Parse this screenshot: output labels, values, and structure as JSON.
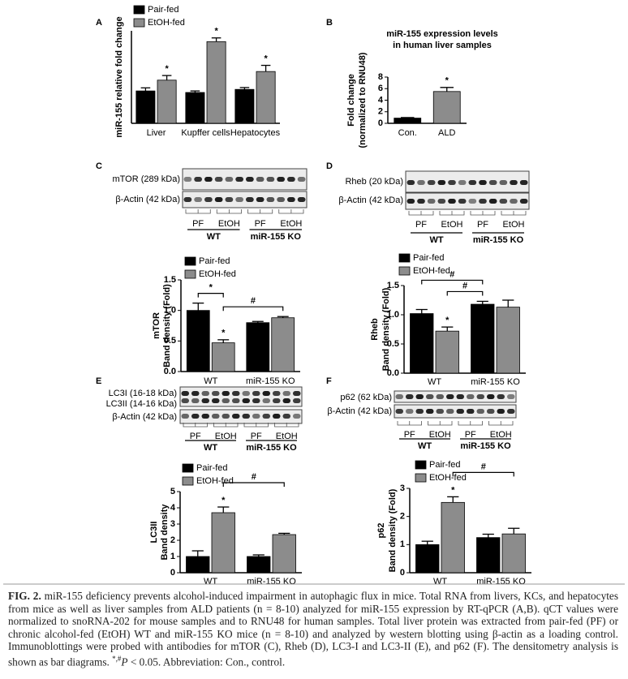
{
  "panel_labels": [
    "A",
    "B",
    "C",
    "D",
    "E",
    "F"
  ],
  "chart_data": [
    {
      "type": "bar",
      "y_label": "miR-155 relative fold change",
      "categories": [
        "Liver",
        "Kupffer cells",
        "Hepatocytes"
      ],
      "series": [
        {
          "name": "Pair-fed",
          "color": "#000000",
          "values": [
            1.05,
            1.0,
            1.1
          ],
          "errors": [
            0.1,
            0.05,
            0.06
          ]
        },
        {
          "name": "EtOH-fed",
          "color": "#8c8c8c",
          "values": [
            1.4,
            2.65,
            1.68
          ],
          "errors": [
            0.15,
            0.12,
            0.2
          ],
          "markers": [
            "*",
            "*",
            "*"
          ]
        }
      ],
      "ylim": [
        0,
        3
      ]
    },
    {
      "type": "bar",
      "title": [
        "miR-155 expression levels",
        "in human liver samples"
      ],
      "y_label": [
        "Fold change",
        "(normalized to RNU48)"
      ],
      "categories": [
        "Con.",
        "ALD"
      ],
      "values": [
        0.9,
        5.5
      ],
      "errors": [
        0.1,
        0.7
      ],
      "colors": [
        "#000000",
        "#8c8c8c"
      ],
      "markers": [
        null,
        "*"
      ],
      "ylim": [
        0,
        8
      ],
      "yticks": [
        0,
        2,
        4,
        6,
        8
      ]
    },
    {
      "type": "bar",
      "y_label": [
        "mTOR",
        "Band density (Fold)"
      ],
      "categories": [
        "WT",
        "miR-155 KO"
      ],
      "series": [
        {
          "name": "Pair-fed",
          "color": "#000000",
          "values": [
            1.0,
            0.8
          ],
          "errors": [
            0.12,
            0.02
          ]
        },
        {
          "name": "EtOH-fed",
          "color": "#8c8c8c",
          "values": [
            0.47,
            0.88
          ],
          "errors": [
            0.05,
            0.02
          ],
          "markers": [
            "*",
            null
          ]
        }
      ],
      "brackets": [
        {
          "label": "*",
          "from": [
            0,
            0
          ],
          "to": [
            1,
            0
          ]
        },
        {
          "label": "#",
          "from": [
            1,
            0
          ],
          "to": [
            1,
            1
          ]
        }
      ],
      "ylim": [
        0,
        1.5
      ],
      "yticks": [
        {
          "value": 0,
          "label": "0.0"
        },
        0.5,
        {
          "value": 1,
          "label": "1.0"
        },
        1.5
      ]
    },
    {
      "type": "bar",
      "y_label": [
        "Rheb",
        "Band density (Fold)"
      ],
      "categories": [
        "WT",
        "miR-155 KO"
      ],
      "series": [
        {
          "name": "Pair-fed",
          "color": "#000000",
          "values": [
            1.02,
            1.18
          ],
          "errors": [
            0.07,
            0.05
          ]
        },
        {
          "name": "EtOH-fed",
          "color": "#8c8c8c",
          "values": [
            0.72,
            1.13
          ],
          "errors": [
            0.07,
            0.12
          ],
          "markers": [
            "*",
            null
          ]
        }
      ],
      "brackets": [
        {
          "label": "#",
          "from": [
            1,
            0
          ],
          "to": [
            0,
            1
          ]
        },
        {
          "label": "#",
          "from": [
            0,
            0
          ],
          "to": [
            0,
            1
          ]
        }
      ],
      "ylim": [
        0,
        1.5
      ],
      "yticks": [
        {
          "value": 0,
          "label": "0.0"
        },
        0.5,
        {
          "value": 1,
          "label": "1.0"
        },
        1.5
      ]
    },
    {
      "type": "bar",
      "y_label": [
        "LC3II",
        "Band density"
      ],
      "categories": [
        "WT",
        "miR-155 KO"
      ],
      "series": [
        {
          "name": "Pair-fed",
          "color": "#000000",
          "values": [
            1.0,
            1.0
          ],
          "errors": [
            0.35,
            0.1
          ]
        },
        {
          "name": "EtOH-fed",
          "color": "#8c8c8c",
          "values": [
            3.7,
            2.35
          ],
          "errors": [
            0.35,
            0.08
          ],
          "markers": [
            "*",
            null
          ]
        }
      ],
      "brackets": [
        {
          "label": "#",
          "from": [
            1,
            0
          ],
          "to": [
            1,
            1
          ]
        }
      ],
      "ylim": [
        0,
        5
      ],
      "yticks": [
        0,
        1,
        2,
        3,
        4,
        5
      ]
    },
    {
      "type": "bar",
      "y_label": [
        "p62",
        "Band density (Fold)"
      ],
      "categories": [
        "WT",
        "miR-155 KO"
      ],
      "series": [
        {
          "name": "Pair-fed",
          "color": "#000000",
          "values": [
            1.0,
            1.25
          ],
          "errors": [
            0.12,
            0.12
          ]
        },
        {
          "name": "EtOH-fed",
          "color": "#8c8c8c",
          "values": [
            2.5,
            1.38
          ],
          "errors": [
            0.2,
            0.2
          ],
          "markers": [
            "*",
            null
          ]
        }
      ],
      "brackets": [
        {
          "label": "#",
          "from": [
            1,
            0
          ],
          "to": [
            1,
            1
          ]
        }
      ],
      "ylim": [
        0,
        3
      ],
      "yticks": [
        0,
        1,
        2,
        3
      ]
    }
  ],
  "blots": [
    {
      "rows": [
        "mTOR (289 kDa)",
        "β-Actin (42 kDa)"
      ],
      "lanes": [
        "PF",
        "EtOH",
        "PF",
        "EtOH"
      ],
      "groups": [
        "WT",
        "miR-155 KO"
      ]
    },
    {
      "rows": [
        "Rheb (20 kDa)",
        "β-Actin (42 kDa)"
      ],
      "lanes": [
        "PF",
        "EtOH",
        "PF",
        "EtOH"
      ],
      "groups": [
        "WT",
        "miR-155 KO"
      ]
    },
    {
      "rows": [
        "LC3I (16-18 kDa)",
        "LC3II (14-16 kDa)",
        "β-Actin (42 kDa)"
      ],
      "lanes": [
        "PF",
        "EtOH",
        "PF",
        "EtOH"
      ],
      "groups": [
        "WT",
        "miR-155 KO"
      ]
    },
    {
      "rows": [
        "p62 (62 kDa)",
        "β-Actin (42 kDa)"
      ],
      "lanes": [
        "PF",
        "EtOH",
        "PF",
        "EtOH"
      ],
      "groups": [
        "WT",
        "miR-155 KO"
      ]
    }
  ],
  "caption": {
    "label": "FIG. 2.",
    "text": "miR-155 deficiency prevents alcohol-induced impairment in autophagic flux in mice. Total RNA from livers, KCs, and hepatocytes from mice as well as liver samples from ALD patients (n = 8-10) analyzed for miR-155 expression by RT-qPCR (A,B). qCT values were normalized to snoRNA-202 for mouse samples and to RNU48 for human samples. Total liver protein was extracted from pair-fed (PF) or chronic alcohol-fed (EtOH) WT and miR-155 KO mice (n = 8-10) and analyzed by western blotting using β-actin as a loading control. Immunoblottings were probed with antibodies for mTOR (C), Rheb (D), LC3-I and LC3-II (E), and p62 (F). The densitometry analysis is shown as bar diagrams. ",
    "superscript": "*,#",
    "p": "P",
    "rest": " < 0.05. Abbreviation: Con., control."
  }
}
